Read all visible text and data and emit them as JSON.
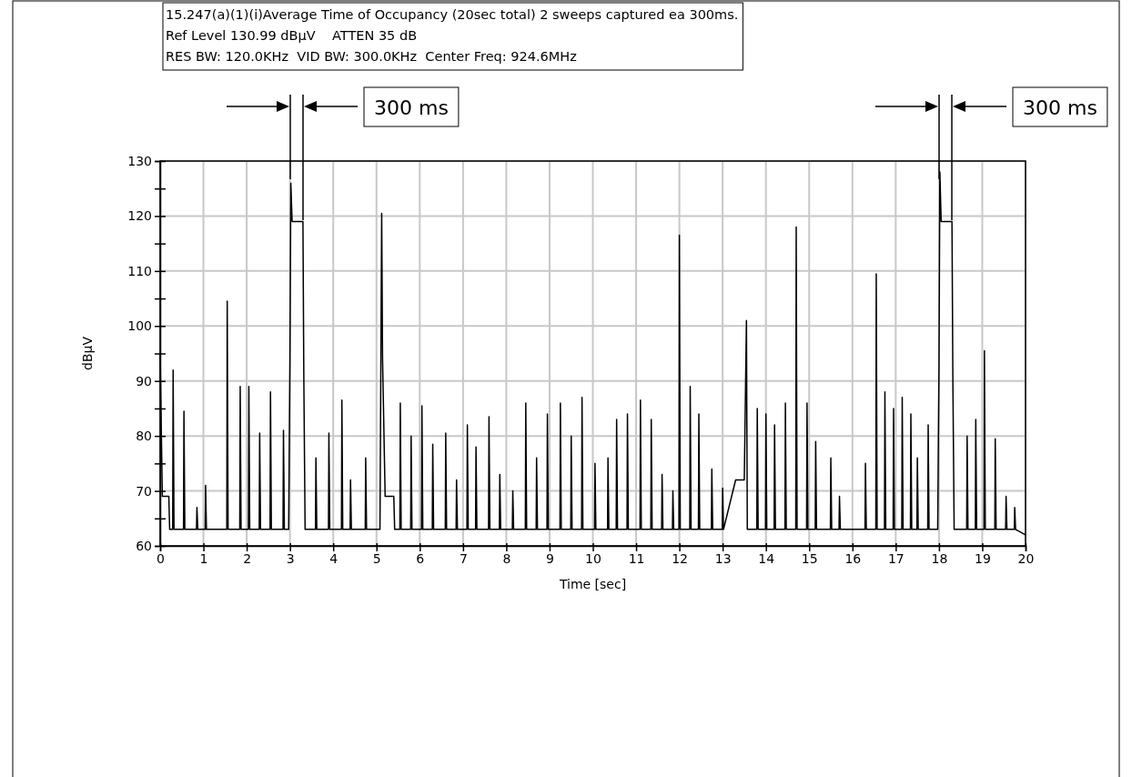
{
  "chart_data": {
    "type": "line",
    "xlabel": "Time [sec]",
    "ylabel": "dBµV",
    "xlim": [
      0,
      20
    ],
    "ylim": [
      60,
      130
    ],
    "xticks": [
      0,
      1,
      2,
      3,
      4,
      5,
      6,
      7,
      8,
      9,
      10,
      11,
      12,
      13,
      14,
      15,
      16,
      17,
      18,
      19,
      20
    ],
    "yticks": [
      60,
      {
        "value": 65,
        "label": null
      },
      70,
      {
        "value": 75,
        "label": null
      },
      80,
      {
        "value": 85,
        "label": null
      },
      90,
      {
        "value": 95,
        "label": null
      },
      100,
      {
        "value": 105,
        "label": null
      },
      110,
      {
        "value": 115,
        "label": null
      },
      120,
      {
        "value": 125,
        "label": null
      },
      130
    ],
    "grid": true,
    "marker": "none",
    "line_style": "solid",
    "annotations": [
      "15.247(a)(1)(i)Average Time of Occupancy (20sec total) 2 sweeps captured ea 300ms.",
      "Ref Level 130.99 dBµV    ATTEN 35 dB",
      "RES BW: 120.0KHz  VID BW: 300.0KHz  Center Freq: 924.6MHz",
      "300 ms",
      "300 ms"
    ],
    "series": [
      {
        "color": "#000000",
        "x": [
          0,
          0.05,
          0.2,
          0.22,
          0.29,
          0.3,
          0.32,
          0.54,
          0.55,
          0.57,
          0.84,
          0.85,
          0.87,
          1.04,
          1.05,
          1.07,
          1.54,
          1.55,
          1.57,
          1.84,
          1.85,
          1.87,
          2.04,
          2.05,
          2.07,
          2.29,
          2.3,
          2.32,
          2.54,
          2.55,
          2.57,
          2.84,
          2.85,
          2.87,
          2.97,
          3.0,
          3.02,
          3.05,
          3.3,
          3.32,
          3.35,
          3.59,
          3.6,
          3.62,
          3.89,
          3.9,
          3.92,
          4.19,
          4.2,
          4.22,
          4.39,
          4.4,
          4.42,
          4.74,
          4.75,
          4.77,
          5.08,
          5.12,
          5.14,
          5.2,
          5.4,
          5.42,
          5.54,
          5.55,
          5.57,
          5.79,
          5.8,
          5.82,
          6.04,
          6.05,
          6.07,
          6.29,
          6.3,
          6.32,
          6.59,
          6.6,
          6.62,
          6.84,
          6.85,
          6.87,
          7.09,
          7.1,
          7.12,
          7.29,
          7.3,
          7.32,
          7.59,
          7.6,
          7.62,
          7.84,
          7.85,
          7.87,
          8.14,
          8.15,
          8.17,
          8.44,
          8.45,
          8.47,
          8.69,
          8.7,
          8.72,
          8.94,
          8.95,
          8.97,
          9.24,
          9.25,
          9.27,
          9.49,
          9.5,
          9.52,
          9.74,
          9.75,
          9.77,
          10.04,
          10.05,
          10.07,
          10.34,
          10.35,
          10.37,
          10.54,
          10.55,
          10.57,
          10.79,
          10.8,
          10.82,
          11.09,
          11.1,
          11.12,
          11.34,
          11.35,
          11.37,
          11.59,
          11.6,
          11.62,
          11.84,
          11.85,
          11.87,
          11.99,
          12.0,
          12.02,
          12.24,
          12.25,
          12.27,
          12.44,
          12.45,
          12.47,
          12.74,
          12.75,
          12.77,
          12.99,
          13.0,
          13.02,
          13.3,
          13.32,
          13.5,
          13.55,
          13.57,
          13.79,
          13.8,
          13.82,
          13.99,
          14.0,
          14.02,
          14.19,
          14.2,
          14.22,
          14.44,
          14.45,
          14.47,
          14.69,
          14.7,
          14.72,
          14.94,
          14.95,
          14.97,
          15.14,
          15.15,
          15.17,
          15.49,
          15.5,
          15.52,
          15.69,
          15.7,
          15.72,
          16.29,
          16.3,
          16.32,
          16.54,
          16.55,
          16.57,
          16.74,
          16.75,
          16.77,
          16.94,
          16.95,
          16.97,
          17.14,
          17.15,
          17.17,
          17.34,
          17.35,
          17.37,
          17.49,
          17.5,
          17.52,
          17.74,
          17.75,
          17.77,
          17.97,
          18.0,
          18.02,
          18.05,
          18.3,
          18.32,
          18.35,
          18.64,
          18.65,
          18.67,
          18.84,
          18.85,
          18.87,
          19.04,
          19.05,
          19.07,
          19.29,
          19.3,
          19.32,
          19.54,
          19.55,
          19.57,
          19.74,
          19.75,
          19.77,
          20
        ],
        "values": [
          95,
          69,
          69,
          63,
          63,
          92,
          63,
          63,
          84.5,
          63,
          63,
          67,
          63,
          63,
          71,
          63,
          63,
          104.5,
          63,
          63,
          89,
          63,
          63,
          89,
          63,
          63,
          80.5,
          63,
          63,
          88,
          63,
          63,
          81,
          63,
          63,
          94,
          126,
          119,
          119,
          91,
          63,
          63,
          76,
          63,
          63,
          80.5,
          63,
          63,
          86.5,
          63,
          63,
          72,
          63,
          63,
          76,
          63,
          63,
          120.5,
          94,
          69,
          69,
          63,
          63,
          86,
          63,
          63,
          80,
          63,
          63,
          85.5,
          63,
          63,
          78.5,
          63,
          63,
          80.5,
          63,
          63,
          72,
          63,
          63,
          82,
          63,
          63,
          78,
          63,
          63,
          83.5,
          63,
          63,
          73,
          63,
          63,
          70,
          63,
          63,
          86,
          63,
          63,
          76,
          63,
          63,
          84,
          63,
          63,
          86,
          63,
          63,
          80,
          63,
          63,
          87,
          63,
          63,
          75,
          63,
          63,
          76,
          63,
          63,
          83,
          63,
          63,
          84,
          63,
          63,
          86.5,
          63,
          63,
          83,
          63,
          63,
          73,
          63,
          63,
          70,
          63,
          63,
          116.5,
          63,
          63,
          89,
          63,
          63,
          84,
          63,
          63,
          74,
          63,
          63,
          70.5,
          63,
          72,
          72,
          72,
          101,
          63,
          63,
          85,
          63,
          63,
          84,
          63,
          63,
          82,
          63,
          63,
          86,
          63,
          63,
          118,
          63,
          63,
          86,
          63,
          63,
          79,
          63,
          63,
          76,
          63,
          63,
          69,
          63,
          63,
          75,
          63,
          63,
          109.5,
          63,
          63,
          88,
          63,
          63,
          85,
          63,
          63,
          87,
          63,
          63,
          84,
          63,
          63,
          76,
          63,
          63,
          82,
          63,
          63,
          93,
          128,
          119,
          119,
          91,
          63,
          63,
          80,
          63,
          63,
          83,
          63,
          63,
          95.5,
          63,
          63,
          79.5,
          63,
          63,
          69,
          63,
          63,
          67,
          63,
          62
        ]
      }
    ]
  }
}
